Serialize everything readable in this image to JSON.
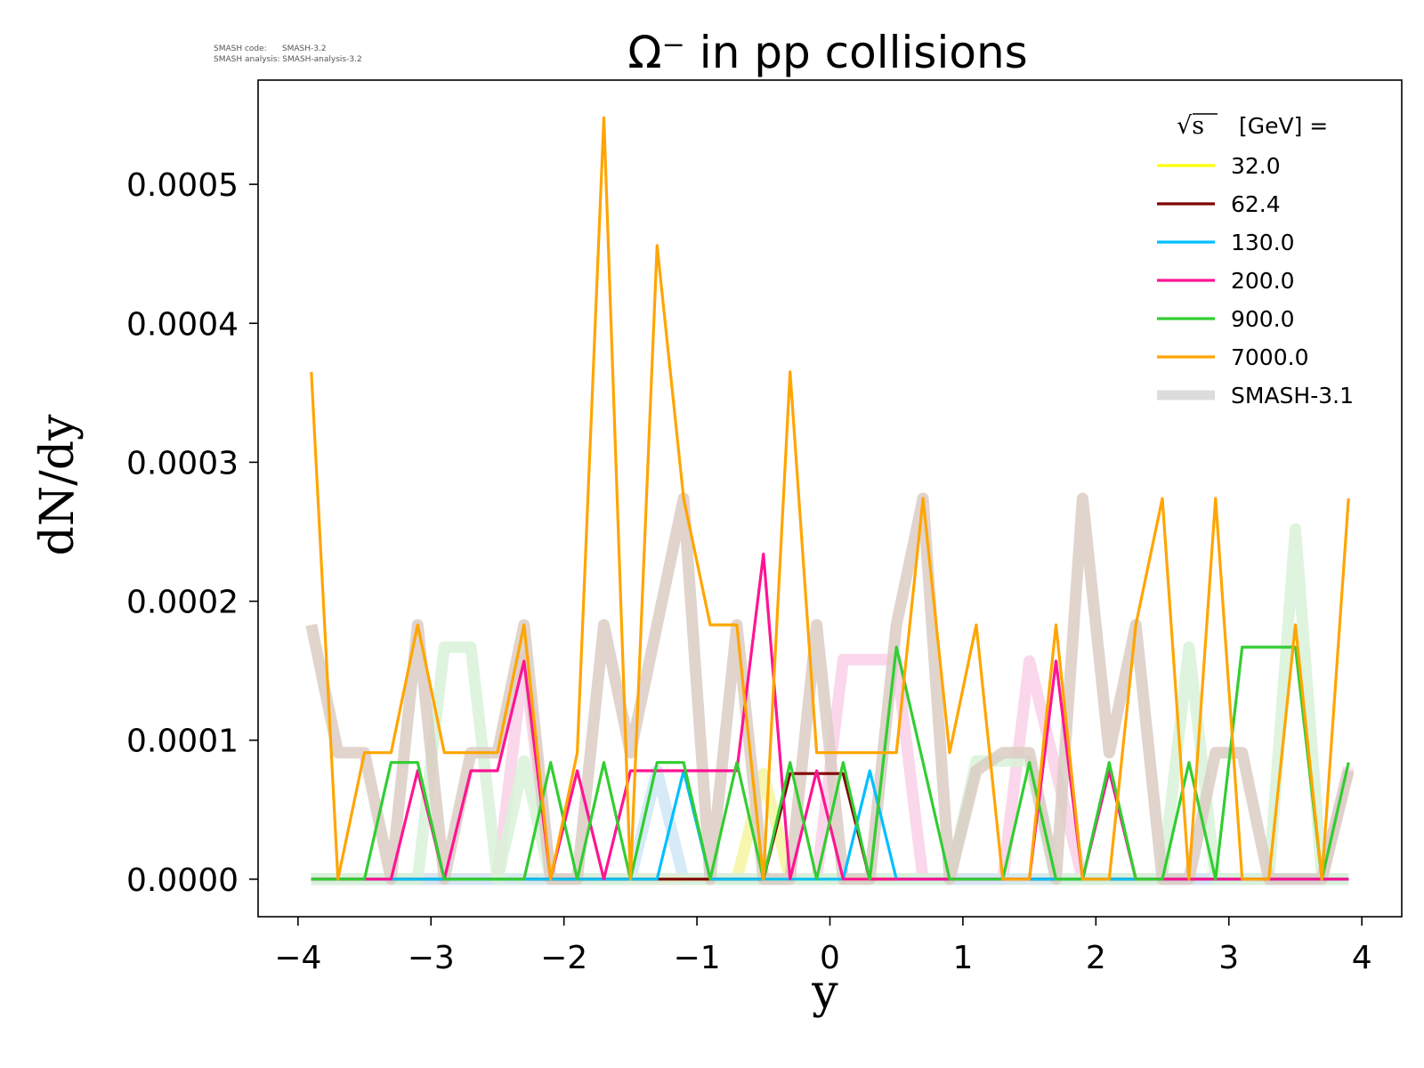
{
  "meta": {
    "code_line": "SMASH code:      SMASH-3.2",
    "analysis_line": "SMASH analysis: SMASH-analysis-3.2"
  },
  "chart_data": {
    "type": "line",
    "title": "Ω⁻ in pp collisions",
    "xlabel": "y",
    "ylabel": "dN/dy",
    "xlim": [
      -4.3,
      4.3
    ],
    "ylim": [
      -2.7e-05,
      0.000575
    ],
    "xticks": [
      -4,
      -3,
      -2,
      -1,
      0,
      1,
      2,
      3,
      4
    ],
    "xtick_labels": [
      "−4",
      "−3",
      "−2",
      "−1",
      "0",
      "1",
      "2",
      "3",
      "4"
    ],
    "yticks": [
      0.0,
      0.0001,
      0.0002,
      0.0003,
      0.0004,
      0.0005
    ],
    "ytick_labels": [
      "0.0000",
      "0.0001",
      "0.0002",
      "0.0003",
      "0.0004",
      "0.0005"
    ],
    "grid": false,
    "legend": {
      "position": "top-right",
      "title_root": "√s",
      "title_rest": "[GeV] =",
      "entries": [
        "32.0",
        "62.4",
        "130.0",
        "200.0",
        "900.0",
        "7000.0",
        "SMASH-3.1"
      ]
    },
    "x": [
      -3.9,
      -3.7,
      -3.5,
      -3.3,
      -3.1,
      -2.9,
      -2.7,
      -2.5,
      -2.3,
      -2.1,
      -1.9,
      -1.7,
      -1.5,
      -1.3,
      -1.1,
      -0.9,
      -0.7,
      -0.5,
      -0.3,
      -0.1,
      0.1,
      0.3,
      0.5,
      0.7,
      0.9,
      1.1,
      1.3,
      1.5,
      1.7,
      1.9,
      2.1,
      2.3,
      2.5,
      2.7,
      2.9,
      3.1,
      3.3,
      3.5,
      3.7,
      3.9
    ],
    "reference": [
      {
        "name": "32.0",
        "color": "#f5f5a0",
        "values": [
          0,
          0,
          0,
          0,
          0,
          0,
          0,
          0,
          0,
          0,
          0,
          0,
          0,
          0,
          0,
          0,
          0,
          7.6e-05,
          0,
          0,
          0,
          0,
          0,
          0,
          0,
          0,
          0,
          0,
          0,
          0,
          0,
          0,
          0,
          0,
          0,
          0,
          0,
          0,
          0,
          0
        ]
      },
      {
        "name": "200.0",
        "color": "#f9d0e6",
        "values": [
          0,
          0,
          0,
          0,
          0,
          0,
          0,
          0,
          0.00016,
          0,
          0,
          0,
          0,
          0,
          0,
          0,
          0,
          0,
          0,
          0,
          0.000158,
          0.000158,
          0.000158,
          0,
          0,
          0,
          0,
          0.000157,
          7.8e-05,
          0,
          0,
          0,
          0,
          0,
          0,
          0,
          0,
          0,
          0,
          8e-05
        ]
      },
      {
        "name": "130.0",
        "color": "#cfe8f6",
        "values": [
          0,
          0,
          0,
          0,
          0,
          0,
          0,
          0,
          0,
          0,
          0,
          0,
          0,
          7.8e-05,
          0,
          0,
          0,
          0,
          0,
          0,
          0,
          0,
          0,
          0,
          0,
          0,
          0,
          0,
          0,
          0,
          0,
          0,
          0,
          0,
          0,
          0,
          0,
          0,
          0,
          0
        ]
      },
      {
        "name": "900.0",
        "color": "#d8f2d8",
        "values": [
          0,
          0,
          0,
          0,
          0,
          0.000167,
          0.000167,
          0,
          8.5e-05,
          0,
          0,
          0,
          0,
          0,
          0,
          0,
          0,
          0,
          0,
          0,
          0,
          0,
          0,
          0,
          0,
          8.5e-05,
          8.5e-05,
          8.5e-05,
          0,
          0,
          0,
          0,
          0,
          0.000167,
          0,
          0,
          0,
          0.000252,
          0,
          0
        ]
      },
      {
        "name": "SMASH-3.1",
        "color": "#dacdc4",
        "values": [
          0.000183,
          9.1e-05,
          9.1e-05,
          0,
          0.000183,
          0,
          9.1e-05,
          9.1e-05,
          0.000183,
          0,
          0,
          0.000183,
          9.1e-05,
          0.000183,
          0.000274,
          0,
          0.000183,
          0,
          0,
          0.000183,
          0,
          0,
          0.000183,
          0.000274,
          0,
          7.8e-05,
          9.1e-05,
          9.1e-05,
          0,
          0.000274,
          9.1e-05,
          0.000183,
          0,
          0,
          9.1e-05,
          9.1e-05,
          0,
          0,
          0,
          7.8e-05
        ]
      }
    ],
    "series": [
      {
        "name": "32.0",
        "color": "#ffff00",
        "values": [
          0,
          0,
          0,
          0,
          0,
          0,
          0,
          0,
          0,
          0,
          0,
          0,
          0,
          0,
          0,
          0,
          0,
          0,
          0,
          0,
          0,
          0,
          0,
          0,
          0,
          0,
          0,
          0,
          0,
          0,
          0,
          0,
          0,
          0,
          0,
          0,
          0,
          0,
          0,
          0
        ]
      },
      {
        "name": "62.4",
        "color": "#800000",
        "values": [
          0,
          0,
          0,
          0,
          0,
          0,
          0,
          0,
          0,
          0,
          0,
          0,
          0,
          0,
          0,
          0,
          0,
          0,
          7.6e-05,
          7.6e-05,
          7.6e-05,
          0,
          0,
          0,
          0,
          0,
          0,
          0,
          0,
          0,
          0,
          0,
          0,
          0,
          0,
          0,
          0,
          0,
          0,
          0
        ]
      },
      {
        "name": "130.0",
        "color": "#00bfff",
        "values": [
          0,
          0,
          0,
          0,
          0,
          0,
          0,
          0,
          0,
          0,
          0,
          0,
          0,
          0,
          7.8e-05,
          0,
          0,
          0,
          0,
          0,
          0,
          7.8e-05,
          0,
          0,
          0,
          0,
          0,
          0,
          0,
          0,
          0,
          0,
          0,
          0,
          0,
          0,
          0,
          0,
          0,
          0
        ]
      },
      {
        "name": "200.0",
        "color": "#ff1493",
        "values": [
          0,
          0,
          0,
          0,
          7.8e-05,
          0,
          7.8e-05,
          7.8e-05,
          0.000157,
          0,
          7.8e-05,
          0,
          7.8e-05,
          7.8e-05,
          7.8e-05,
          7.8e-05,
          7.8e-05,
          0.000234,
          0,
          7.8e-05,
          0,
          0,
          0,
          0,
          0,
          0,
          0,
          0,
          0.000157,
          0,
          7.8e-05,
          0,
          0,
          0,
          0,
          0,
          0,
          0,
          0,
          0
        ]
      },
      {
        "name": "900.0",
        "color": "#32cd32",
        "values": [
          0,
          0,
          0,
          8.4e-05,
          8.4e-05,
          0,
          0,
          0,
          0,
          8.4e-05,
          0,
          8.4e-05,
          0,
          8.4e-05,
          8.4e-05,
          0,
          8.4e-05,
          0,
          8.4e-05,
          0,
          8.4e-05,
          0,
          0.000167,
          8.4e-05,
          0,
          0,
          0,
          8.4e-05,
          0,
          0,
          8.4e-05,
          0,
          0,
          8.4e-05,
          0,
          0.000167,
          0.000167,
          0.000167,
          0,
          8.4e-05
        ]
      },
      {
        "name": "7000.0",
        "color": "#ffa500",
        "values": [
          0.000365,
          0,
          9.1e-05,
          9.1e-05,
          0.000183,
          9.1e-05,
          9.1e-05,
          9.1e-05,
          0.000183,
          0,
          9.1e-05,
          0.000548,
          0,
          0.000456,
          0.000274,
          0.000183,
          0.000183,
          0,
          0.000365,
          9.1e-05,
          9.1e-05,
          9.1e-05,
          9.1e-05,
          0.000274,
          9.1e-05,
          0.000183,
          0,
          0,
          0.000183,
          0,
          0,
          0.000183,
          0.000274,
          0,
          0.000274,
          0,
          0,
          0.000183,
          0,
          0.000274
        ]
      }
    ]
  }
}
